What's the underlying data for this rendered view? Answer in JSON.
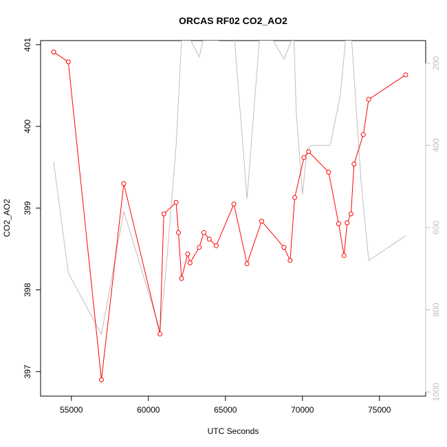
{
  "chart_data": {
    "type": "line",
    "title": "ORCAS RF02 CO2_AO2",
    "xlabel": "UTC Seconds",
    "ylabel": "CO2_AO2",
    "xlim": [
      53000,
      78000
    ],
    "ylim": [
      396.7,
      401.05
    ],
    "y2lim": [
      1010,
      145
    ],
    "x_ticks": [
      55000,
      60000,
      65000,
      70000,
      75000
    ],
    "y_ticks": [
      397,
      398,
      399,
      400,
      401
    ],
    "y2_ticks": [
      200,
      400,
      600,
      800,
      1000
    ],
    "x_tick_labels": [
      "55000",
      "60000",
      "65000",
      "70000",
      "75000"
    ],
    "y_tick_labels": [
      "397",
      "398",
      "399",
      "400",
      "401"
    ],
    "y2_tick_labels": [
      "200",
      "400",
      "600",
      "800",
      "1000"
    ],
    "legend": "none",
    "grid": false,
    "series": [
      {
        "color": "#ff0000",
        "axis": "left",
        "style": "line+open-circles",
        "x": [
          53850,
          54800,
          56950,
          58400,
          60750,
          61000,
          61800,
          61950,
          62150,
          62550,
          62700,
          63300,
          63600,
          63950,
          64400,
          65550,
          66400,
          67350,
          68800,
          69200,
          69500,
          70100,
          70400,
          71700,
          72350,
          72700,
          72900,
          73150,
          73350,
          73950,
          74300,
          76700
        ],
        "y": [
          400.91,
          400.79,
          396.9,
          399.3,
          397.46,
          398.93,
          399.07,
          398.7,
          398.14,
          398.44,
          398.33,
          398.52,
          398.7,
          398.62,
          398.54,
          399.05,
          398.32,
          398.84,
          398.52,
          398.36,
          399.13,
          399.62,
          399.69,
          399.44,
          398.81,
          398.42,
          398.82,
          398.93,
          399.54,
          399.9,
          400.33,
          400.63
        ]
      },
      {
        "color": "#bebebe",
        "axis": "right",
        "style": "line",
        "x": [
          53850,
          54800,
          56950,
          58400,
          60750,
          61150,
          61800,
          62150,
          62750,
          63300,
          63550,
          64550,
          65000,
          65600,
          66400,
          67200,
          68100,
          68800,
          69300,
          69450,
          69600,
          70000,
          70300,
          70550,
          71800,
          72450,
          72800,
          73200,
          73800,
          74300,
          76700
        ],
        "y": [
          440,
          710,
          860,
          560,
          850,
          700,
          400,
          145,
          145,
          185,
          145,
          145,
          130,
          145,
          530,
          145,
          145,
          190,
          145,
          145,
          320,
          520,
          410,
          400,
          400,
          280,
          145,
          145,
          485,
          680,
          620
        ]
      }
    ]
  }
}
